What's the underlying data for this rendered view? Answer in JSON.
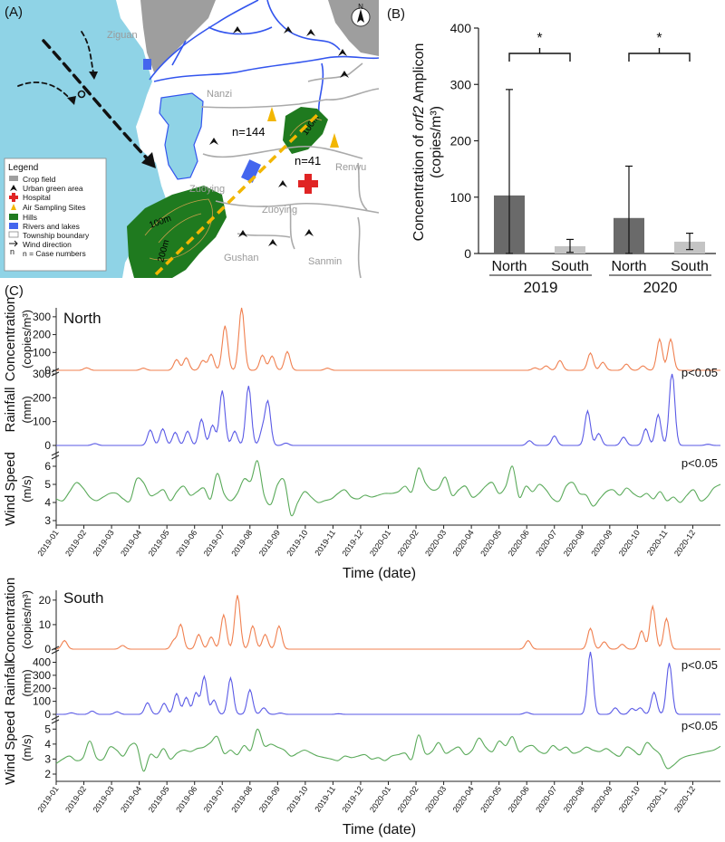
{
  "panel_labels": {
    "a": "(A)",
    "b": "(B)",
    "c": "(C)"
  },
  "map": {
    "places": [
      "Ziguan",
      "Nanzi",
      "Renwu",
      "Zuoying",
      "Zuoying",
      "Gushan",
      "Sanmin"
    ],
    "case_counts": [
      "n=144",
      "n=41"
    ],
    "contours": [
      "100m",
      "200m",
      "100m"
    ],
    "north": "N",
    "legend_title": "Legend",
    "legend_items": [
      {
        "icon": "crop-field-swatch",
        "label": "Crop field"
      },
      {
        "icon": "tree-icon",
        "label": "Urban green area"
      },
      {
        "icon": "hospital-cross-icon",
        "label": "Hospital"
      },
      {
        "icon": "air-sampler-icon",
        "label": "Air Sampling Sites"
      },
      {
        "icon": "hills-swatch",
        "label": "Hills"
      },
      {
        "icon": "water-swatch",
        "label": "Rivers and lakes"
      },
      {
        "icon": "boundary-swatch",
        "label": "Township boundary"
      },
      {
        "icon": "wind-arrow-icon",
        "label": "Wind direction"
      },
      {
        "icon": "n-letter",
        "label": "n = Case numbers"
      }
    ],
    "colors": {
      "sea": "#8fd3e6",
      "hills": "#1f7a1f",
      "hospital": "#e02424",
      "sampler": "#f2b600",
      "crop": "#9a9a9a",
      "river": "#3355ee"
    }
  },
  "bar_chart": {
    "ylabel_lines": [
      "Concentration of orf2 Amplicon",
      "(copies/m³)"
    ],
    "ylabel_italic": "orf2",
    "star": "*",
    "group_labels": [
      "2019",
      "2020"
    ]
  },
  "timeseries": {
    "xlabel": "Time (date)",
    "months": [
      "2019-01",
      "2019-02",
      "2019-03",
      "2019-04",
      "2019-05",
      "2019-06",
      "2019-07",
      "2019-08",
      "2019-09",
      "2019-10",
      "2019-11",
      "2019-12",
      "2020-01",
      "2020-02",
      "2020-03",
      "2020-04",
      "2020-05",
      "2020-06",
      "2020-07",
      "2020-08",
      "2020-09",
      "2020-10",
      "2020-11",
      "2020-12"
    ],
    "row_labels": {
      "conc": [
        "Concentration",
        "(copies/m³)"
      ],
      "rain": [
        "Rainfall",
        "(mm)"
      ],
      "wind": [
        "Wind Speed",
        "(m/s)"
      ]
    },
    "sig": "p<0.05",
    "titles": [
      "North",
      "South"
    ],
    "colors": {
      "conc": "#f08050",
      "rain": "#5a5ae6",
      "wind": "#5aaa5a"
    }
  },
  "chart_data": [
    {
      "type": "bar",
      "categories": [
        "North",
        "South",
        "North",
        "South"
      ],
      "groups": [
        "2019",
        "2019",
        "2020",
        "2020"
      ],
      "values": [
        103,
        13,
        63,
        21
      ],
      "error_upper": [
        291,
        25,
        155,
        36
      ],
      "error_lower": [
        0,
        2,
        0,
        7
      ],
      "ylabel": "Concentration of orf2 Amplicon (copies/m³)",
      "ylim": [
        0,
        400
      ],
      "yticks": [
        0,
        100,
        200,
        300,
        400
      ],
      "colors": [
        "#6a6a6a",
        "#c4c4c4",
        "#6a6a6a",
        "#c4c4c4"
      ],
      "significance": [
        "*",
        "*"
      ]
    },
    {
      "type": "line",
      "title": "North",
      "xlabel": "Time (date)",
      "series": [
        {
          "role": "conc",
          "ylim": [
            0,
            350
          ],
          "yticks": [
            0,
            100,
            200,
            300
          ],
          "peaks": [
            [
              2.1,
              14
            ],
            [
              4.15,
              12
            ],
            [
              5.35,
              60
            ],
            [
              5.7,
              70
            ],
            [
              6.3,
              55
            ],
            [
              6.6,
              90
            ],
            [
              7.1,
              250
            ],
            [
              7.7,
              350
            ],
            [
              8.45,
              85
            ],
            [
              8.8,
              80
            ],
            [
              9.35,
              105
            ],
            [
              10.8,
              12
            ],
            [
              18.3,
              14
            ],
            [
              18.7,
              25
            ],
            [
              19.2,
              55
            ],
            [
              20.3,
              97
            ],
            [
              20.75,
              45
            ],
            [
              21.6,
              35
            ],
            [
              22.2,
              25
            ],
            [
              22.8,
              175
            ],
            [
              23.2,
              175
            ],
            [
              25.3,
              18
            ]
          ]
        },
        {
          "role": "rain",
          "ylim": [
            0,
            300
          ],
          "yticks": [
            0,
            100,
            200,
            300
          ],
          "peaks": [
            [
              2.4,
              8
            ],
            [
              4.4,
              65
            ],
            [
              4.85,
              70
            ],
            [
              5.3,
              55
            ],
            [
              5.75,
              60
            ],
            [
              6.25,
              110
            ],
            [
              6.65,
              85
            ],
            [
              7.0,
              230
            ],
            [
              7.45,
              60
            ],
            [
              7.95,
              250
            ],
            [
              8.45,
              60
            ],
            [
              8.65,
              180
            ],
            [
              9.3,
              10
            ],
            [
              18.1,
              20
            ],
            [
              19.0,
              40
            ],
            [
              20.2,
              145
            ],
            [
              20.6,
              50
            ],
            [
              21.5,
              35
            ],
            [
              22.3,
              70
            ],
            [
              22.75,
              130
            ],
            [
              23.25,
              310
            ],
            [
              24.55,
              5
            ],
            [
              25.4,
              40
            ]
          ]
        },
        {
          "role": "wind",
          "ylim": [
            3,
            6.5
          ],
          "yticks": [
            3,
            4,
            5,
            6
          ],
          "sig": "p<0.05",
          "values": [
            4.2,
            4.1,
            4.6,
            5.1,
            4.8,
            4.3,
            4.1,
            4.3,
            4.5,
            4.5,
            4.2,
            4.1,
            5.3,
            5.1,
            4.4,
            4.5,
            4.7,
            4.1,
            4.6,
            4.9,
            4.4,
            4.6,
            4.8,
            4.2,
            5.6,
            4.5,
            4.1,
            4.5,
            5.3,
            5.2,
            6.3,
            4.4,
            3.9,
            5.0,
            5.2,
            3.3,
            4.0,
            4.6,
            4.3,
            4.0,
            4.1,
            4.2,
            4.5,
            4.7,
            4.3,
            4.2,
            4.4,
            4.3,
            4.4,
            4.5,
            4.5,
            4.6,
            4.9,
            4.6,
            5.9,
            5.1,
            4.7,
            4.8,
            5.4,
            4.4,
            4.7,
            4.9,
            4.3,
            4.5,
            4.9,
            5.1,
            4.5,
            4.9,
            6.0,
            4.3,
            4.9,
            4.6,
            5.0,
            4.7,
            4.2,
            4.1,
            4.9,
            5.1,
            4.5,
            4.4,
            3.8,
            4.2,
            4.6,
            4.7,
            4.4,
            4.8,
            4.5,
            4.3,
            4.5,
            4.2,
            4.6,
            4.1,
            4.3,
            4.0,
            4.4,
            4.7,
            4.1,
            4.3,
            4.8,
            5.0
          ]
        }
      ]
    },
    {
      "type": "line",
      "title": "South",
      "xlabel": "Time (date)",
      "series": [
        {
          "role": "conc",
          "ylim": [
            0,
            24
          ],
          "yticks": [
            0,
            10,
            20
          ],
          "peaks": [
            [
              1.3,
              3.5
            ],
            [
              3.4,
              1.5
            ],
            [
              5.25,
              3.5
            ],
            [
              5.5,
              10
            ],
            [
              6.15,
              6
            ],
            [
              6.6,
              5
            ],
            [
              7.05,
              14
            ],
            [
              7.55,
              22
            ],
            [
              8.1,
              9.5
            ],
            [
              8.55,
              6
            ],
            [
              9.05,
              9.5
            ],
            [
              18.05,
              3.5
            ],
            [
              20.3,
              8.5
            ],
            [
              20.8,
              3
            ],
            [
              21.45,
              2
            ],
            [
              22.15,
              7.5
            ],
            [
              22.55,
              17.5
            ],
            [
              23.05,
              12.5
            ]
          ]
        },
        {
          "role": "rain",
          "ylim": [
            0,
            480
          ],
          "yticks": [
            0,
            100,
            200,
            300,
            400
          ],
          "peaks": [
            [
              1.55,
              12
            ],
            [
              2.3,
              25
            ],
            [
              3.2,
              20
            ],
            [
              4.3,
              90
            ],
            [
              4.9,
              85
            ],
            [
              5.35,
              160
            ],
            [
              5.7,
              130
            ],
            [
              6.05,
              165
            ],
            [
              6.35,
              290
            ],
            [
              6.7,
              110
            ],
            [
              7.3,
              280
            ],
            [
              8.0,
              190
            ],
            [
              8.5,
              50
            ],
            [
              9.1,
              10
            ],
            [
              11.2,
              5
            ],
            [
              18.0,
              15
            ],
            [
              20.3,
              480
            ],
            [
              21.2,
              50
            ],
            [
              21.8,
              45
            ],
            [
              22.1,
              50
            ],
            [
              22.6,
              170
            ],
            [
              23.15,
              395
            ],
            [
              25.4,
              30
            ]
          ]
        },
        {
          "role": "wind",
          "ylim": [
            2,
            5.5
          ],
          "yticks": [
            2,
            3,
            4,
            5
          ],
          "sig": "p<0.05",
          "values": [
            2.7,
            3.0,
            3.2,
            2.9,
            3.1,
            4.2,
            3.1,
            3.0,
            3.8,
            3.6,
            3.2,
            3.9,
            3.9,
            2.2,
            3.3,
            3.1,
            3.7,
            3.0,
            3.4,
            3.6,
            3.5,
            3.7,
            3.8,
            4.1,
            4.5,
            3.4,
            3.6,
            3.3,
            3.9,
            3.6,
            5.0,
            3.9,
            4.0,
            3.8,
            3.6,
            3.2,
            3.4,
            3.6,
            3.4,
            3.2,
            3.1,
            3.0,
            2.9,
            3.2,
            3.1,
            3.2,
            3.3,
            3.0,
            3.1,
            2.9,
            3.2,
            3.3,
            3.4,
            3.0,
            4.6,
            3.4,
            3.5,
            4.1,
            3.4,
            3.6,
            3.8,
            3.3,
            3.6,
            4.4,
            3.8,
            3.5,
            4.2,
            3.9,
            4.5,
            3.5,
            3.8,
            3.9,
            3.5,
            3.4,
            3.9,
            3.6,
            3.8,
            3.4,
            3.5,
            3.8,
            3.6,
            3.5,
            3.7,
            3.4,
            3.2,
            3.8,
            3.6,
            3.3,
            4.1,
            3.7,
            3.3,
            2.4,
            2.6,
            3.0,
            3.2,
            3.3,
            3.4,
            3.5,
            3.6,
            3.85
          ]
        }
      ]
    }
  ]
}
